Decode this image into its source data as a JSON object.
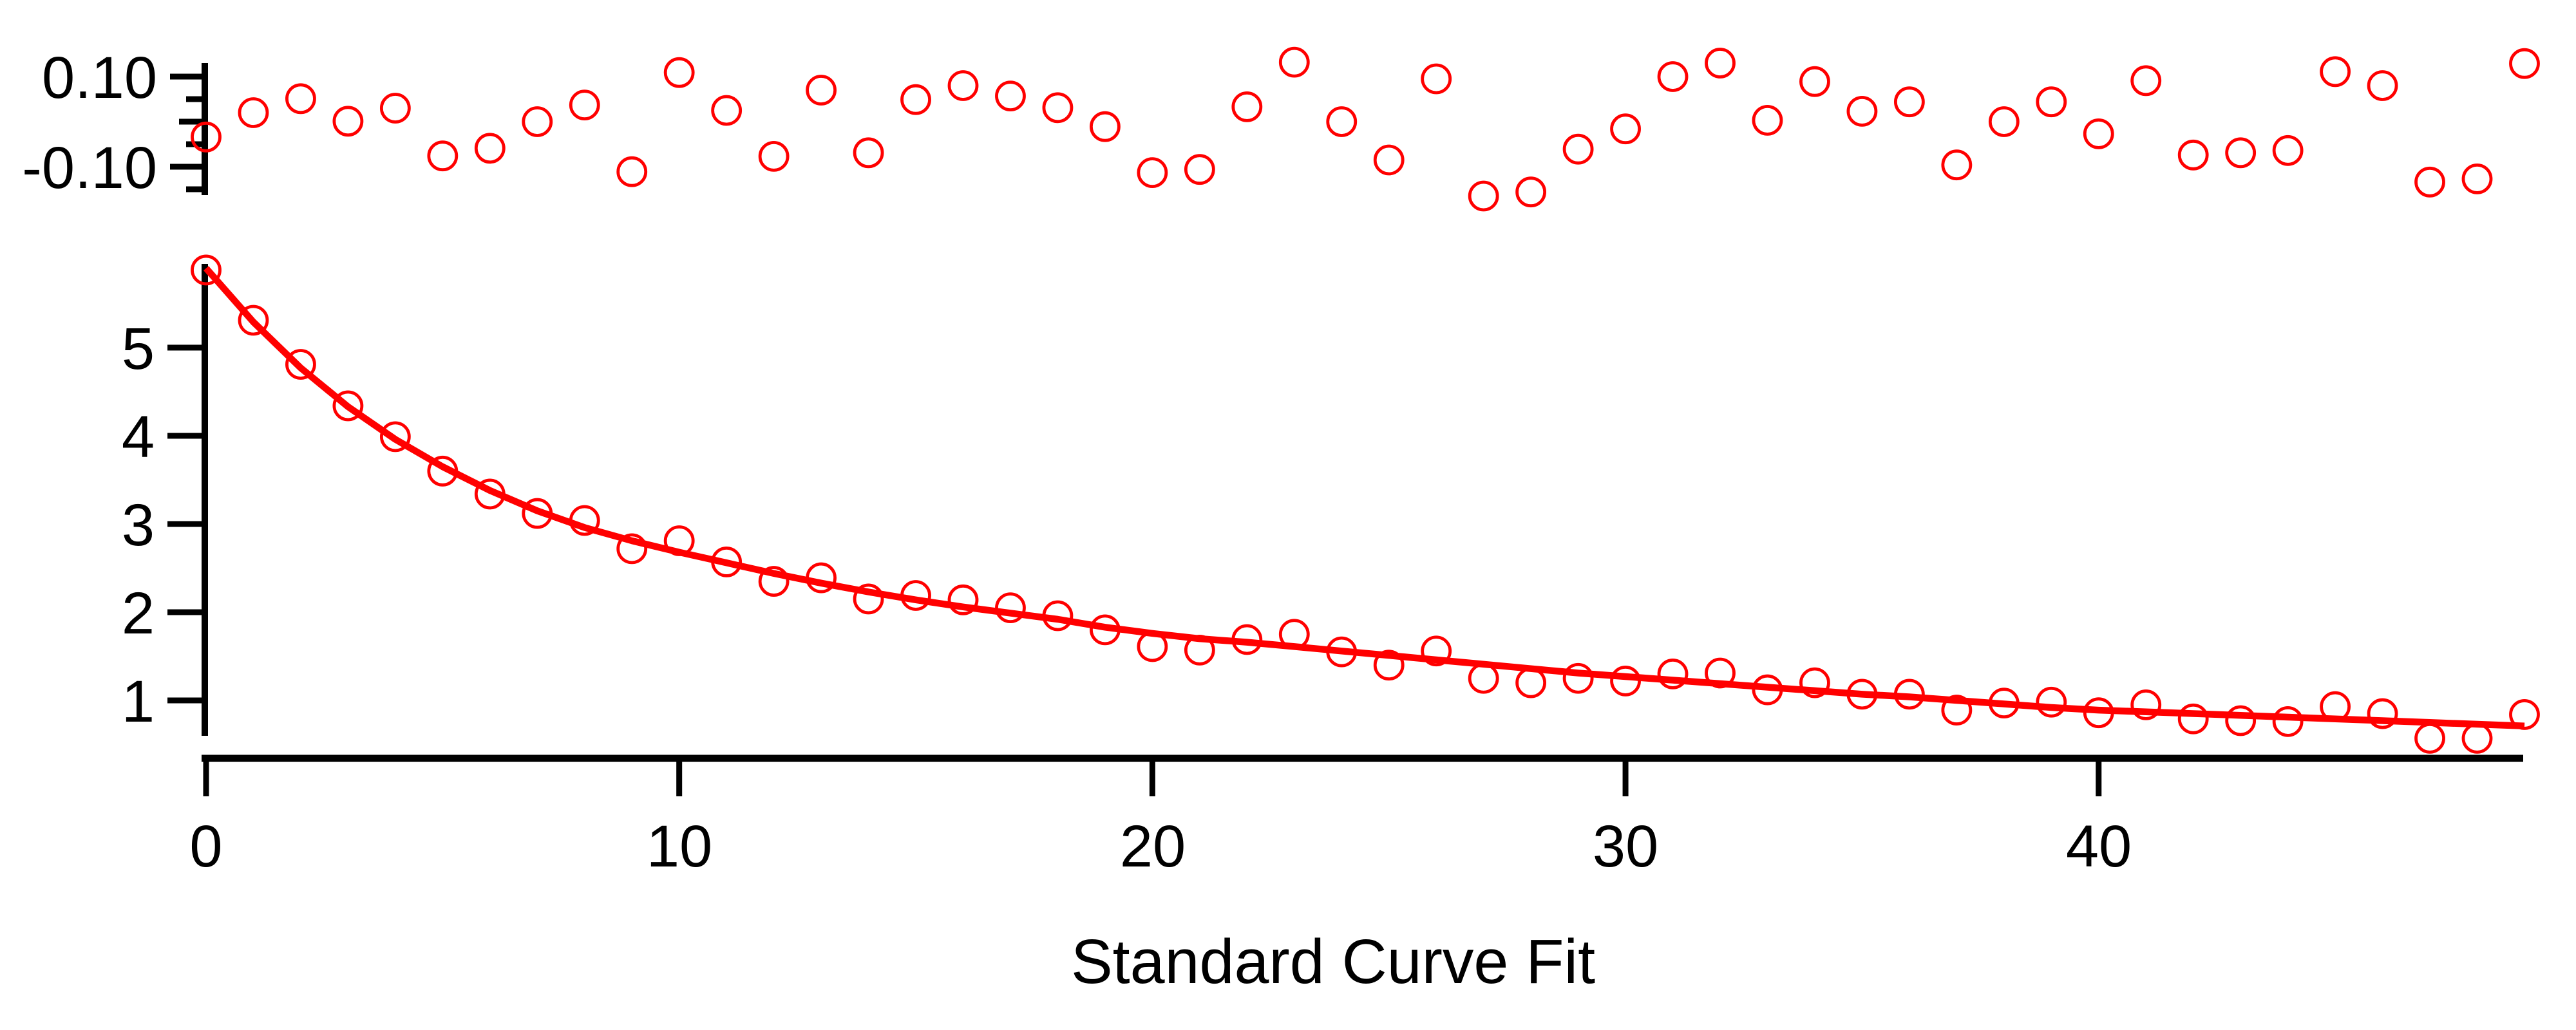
{
  "figure": {
    "title": "Standard Curve Fit",
    "background_color": "#FFFFFF",
    "axis_color": "#000000",
    "accent_color": "#FF0000"
  },
  "chart_data": {
    "type": "scatter",
    "title": "Standard Curve Fit",
    "legend": "none",
    "grid": false,
    "marker": "open-circle",
    "marker_color": "#FF0000",
    "fit_line_color": "#FF0000",
    "x_start": 0,
    "x_step": 1,
    "n_points": 50,
    "x": [
      0,
      1,
      2,
      3,
      4,
      5,
      6,
      7,
      8,
      9,
      10,
      11,
      12,
      13,
      14,
      15,
      16,
      17,
      18,
      19,
      20,
      21,
      22,
      23,
      24,
      25,
      26,
      27,
      28,
      29,
      30,
      31,
      32,
      33,
      34,
      35,
      36,
      37,
      38,
      39,
      40,
      41,
      42,
      43,
      44,
      45,
      46,
      47,
      48,
      49
    ],
    "series": [
      {
        "name": "residuals",
        "panel": "top",
        "values": [
          -0.034,
          0.02,
          0.051,
          0.001,
          0.03,
          -0.076,
          -0.059,
          0.0,
          0.037,
          -0.111,
          0.109,
          0.025,
          -0.077,
          0.07,
          -0.069,
          0.049,
          0.08,
          0.057,
          0.031,
          -0.011,
          -0.113,
          -0.106,
          0.033,
          0.132,
          0.0,
          -0.085,
          0.095,
          -0.165,
          -0.156,
          -0.061,
          -0.016,
          0.1,
          0.13,
          0.003,
          0.089,
          0.023,
          0.044,
          -0.096,
          0.0,
          0.044,
          -0.027,
          0.091,
          -0.074,
          -0.069,
          -0.064,
          0.111,
          0.08,
          -0.134,
          -0.127,
          0.129
        ]
      },
      {
        "name": "data",
        "panel": "main",
        "values": [
          5.88,
          5.31,
          4.81,
          4.34,
          3.99,
          3.6,
          3.34,
          3.12,
          3.04,
          2.72,
          2.81,
          2.57,
          2.35,
          2.39,
          2.15,
          2.19,
          2.14,
          2.05,
          1.96,
          1.8,
          1.61,
          1.57,
          1.69,
          1.75,
          1.55,
          1.4,
          1.56,
          1.25,
          1.2,
          1.25,
          1.22,
          1.3,
          1.31,
          1.12,
          1.2,
          1.07,
          1.07,
          0.89,
          0.97,
          0.98,
          0.86,
          0.95,
          0.79,
          0.77,
          0.76,
          0.93,
          0.85,
          0.57,
          0.57,
          0.84
        ]
      },
      {
        "name": "fit-curve",
        "panel": "main",
        "style": "line",
        "values": [
          5.9,
          5.29,
          4.77,
          4.33,
          3.96,
          3.65,
          3.38,
          3.15,
          2.96,
          2.81,
          2.68,
          2.56,
          2.44,
          2.33,
          2.23,
          2.14,
          2.06,
          1.99,
          1.92,
          1.83,
          1.76,
          1.7,
          1.66,
          1.61,
          1.56,
          1.51,
          1.46,
          1.41,
          1.36,
          1.31,
          1.27,
          1.23,
          1.19,
          1.15,
          1.11,
          1.07,
          1.04,
          1.0,
          0.96,
          0.92,
          0.89,
          0.87,
          0.85,
          0.83,
          0.81,
          0.79,
          0.77,
          0.75,
          0.73,
          0.71
        ]
      }
    ],
    "residual_axis": {
      "side": "left",
      "tick_values": [
        0.1,
        0.05,
        0.0,
        -0.05,
        -0.1,
        -0.15
      ],
      "labeled_ticks": [
        {
          "value": 0.1,
          "label": "0.10"
        },
        {
          "value": -0.1,
          "label": "-0.10"
        }
      ],
      "range": [
        -0.165,
        0.13
      ]
    },
    "yaxis": {
      "side": "left",
      "ticks": [
        {
          "value": 5,
          "label": "5"
        },
        {
          "value": 4,
          "label": "4"
        },
        {
          "value": 3,
          "label": "3"
        },
        {
          "value": 2,
          "label": "2"
        },
        {
          "value": 1,
          "label": "1"
        }
      ],
      "range": [
        0.34,
        5.95
      ]
    },
    "xaxis": {
      "side": "bottom",
      "ticks": [
        {
          "value": 0,
          "label": "0"
        },
        {
          "value": 10,
          "label": "10"
        },
        {
          "value": 20,
          "label": "20"
        },
        {
          "value": 30,
          "label": "30"
        },
        {
          "value": 40,
          "label": "40"
        }
      ],
      "range": [
        0,
        49
      ],
      "title": "Standard Curve Fit"
    }
  }
}
